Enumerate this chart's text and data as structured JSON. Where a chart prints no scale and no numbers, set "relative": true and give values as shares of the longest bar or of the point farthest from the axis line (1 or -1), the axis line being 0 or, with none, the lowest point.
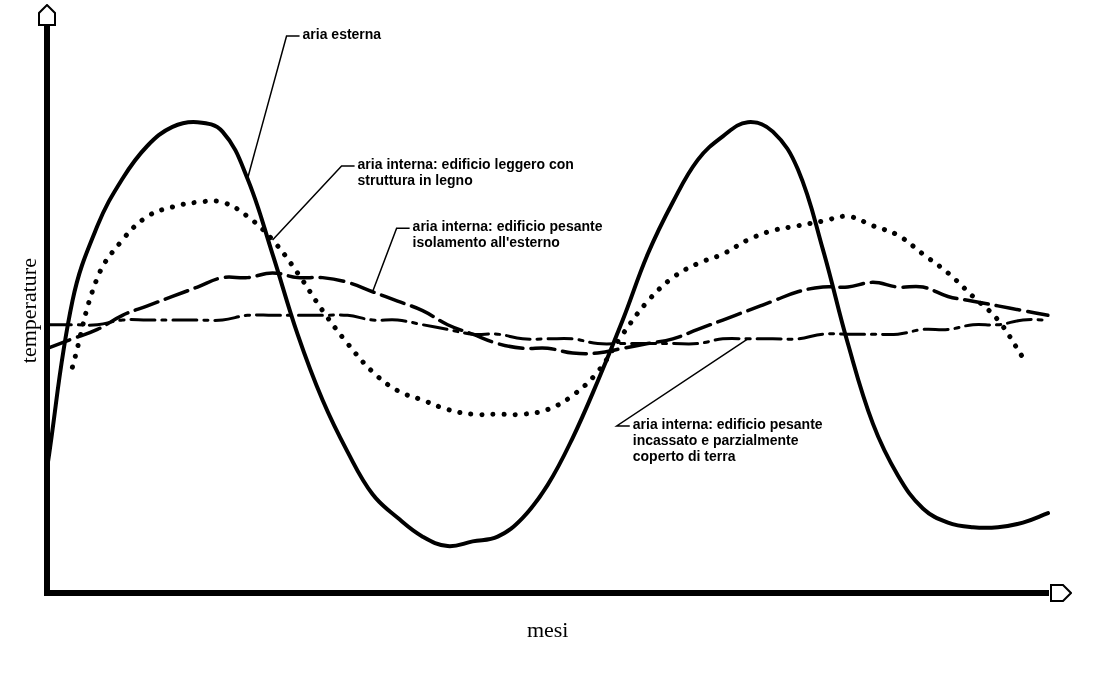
{
  "chart_data": {
    "type": "line",
    "relative": true,
    "xlabel": "mesi",
    "ylabel": "temperature",
    "legend": false,
    "grid": false,
    "marker": "none",
    "categories": [
      null,
      null,
      null,
      null,
      null,
      null,
      null,
      null,
      null,
      null,
      null,
      null,
      null,
      null,
      null,
      null,
      null,
      null,
      null,
      null,
      null,
      null,
      null,
      null,
      null,
      null,
      null,
      null,
      null,
      null,
      null,
      null,
      null,
      null,
      null,
      null,
      null,
      null,
      null,
      null,
      null
    ],
    "series": [
      {
        "name": "aria esterna",
        "color": "#000000",
        "line_style": "solid",
        "values": [
          0.27,
          0.62,
          0.78,
          0.88,
          0.95,
          0.99,
          1,
          0.98,
          0.88,
          0.72,
          0.55,
          0.41,
          0.3,
          0.21,
          0.16,
          0.12,
          0.1,
          0.11,
          0.12,
          0.16,
          0.23,
          0.33,
          0.45,
          0.58,
          0.72,
          0.83,
          0.92,
          0.97,
          1.0,
          0.98,
          0.9,
          0.73,
          0.53,
          0.36,
          0.25,
          0.18,
          0.15,
          0.14,
          0.14,
          0.15,
          0.17
        ]
      },
      {
        "name": "aria interna: edificio leggero con struttura in legno",
        "color": "#000000",
        "line_style": "dotted",
        "values": [
          null,
          0.48,
          0.67,
          0.75,
          0.8,
          0.82,
          0.83,
          0.83,
          0.8,
          0.75,
          0.68,
          0.6,
          0.53,
          0.47,
          0.43,
          0.41,
          0.39,
          0.38,
          0.38,
          0.38,
          0.39,
          0.42,
          0.47,
          0.55,
          0.62,
          0.67,
          0.7,
          0.72,
          0.75,
          0.77,
          0.78,
          0.79,
          0.8,
          0.78,
          0.76,
          0.72,
          0.68,
          0.63,
          0.58,
          0.5,
          null
        ]
      },
      {
        "name": "aria interna: edificio pesante isolamento all'esterno",
        "color": "#000000",
        "line_style": "dashed",
        "values": [
          0.52,
          0.54,
          0.56,
          0.59,
          0.61,
          0.63,
          0.65,
          0.67,
          0.67,
          0.68,
          0.67,
          0.67,
          0.66,
          0.64,
          0.62,
          0.6,
          0.57,
          0.55,
          0.53,
          0.52,
          0.52,
          0.51,
          0.51,
          0.52,
          0.53,
          0.54,
          0.56,
          0.58,
          0.6,
          0.62,
          0.64,
          0.65,
          0.65,
          0.66,
          0.65,
          0.65,
          0.63,
          0.62,
          0.61,
          0.6,
          0.59
        ]
      },
      {
        "name": "aria interna: edificio pesante incassato e parzialmente coperto di terra",
        "color": "#000000",
        "line_style": "dashdot",
        "values": [
          0.57,
          0.57,
          0.57,
          0.58,
          0.58,
          0.58,
          0.58,
          0.58,
          0.59,
          0.59,
          0.59,
          0.59,
          0.59,
          0.58,
          0.58,
          0.57,
          0.56,
          0.55,
          0.55,
          0.54,
          0.54,
          0.54,
          0.53,
          0.53,
          0.53,
          0.53,
          0.53,
          0.54,
          0.54,
          0.54,
          0.54,
          0.55,
          0.55,
          0.55,
          0.55,
          0.56,
          0.56,
          0.57,
          0.57,
          0.58,
          0.58
        ]
      }
    ]
  }
}
